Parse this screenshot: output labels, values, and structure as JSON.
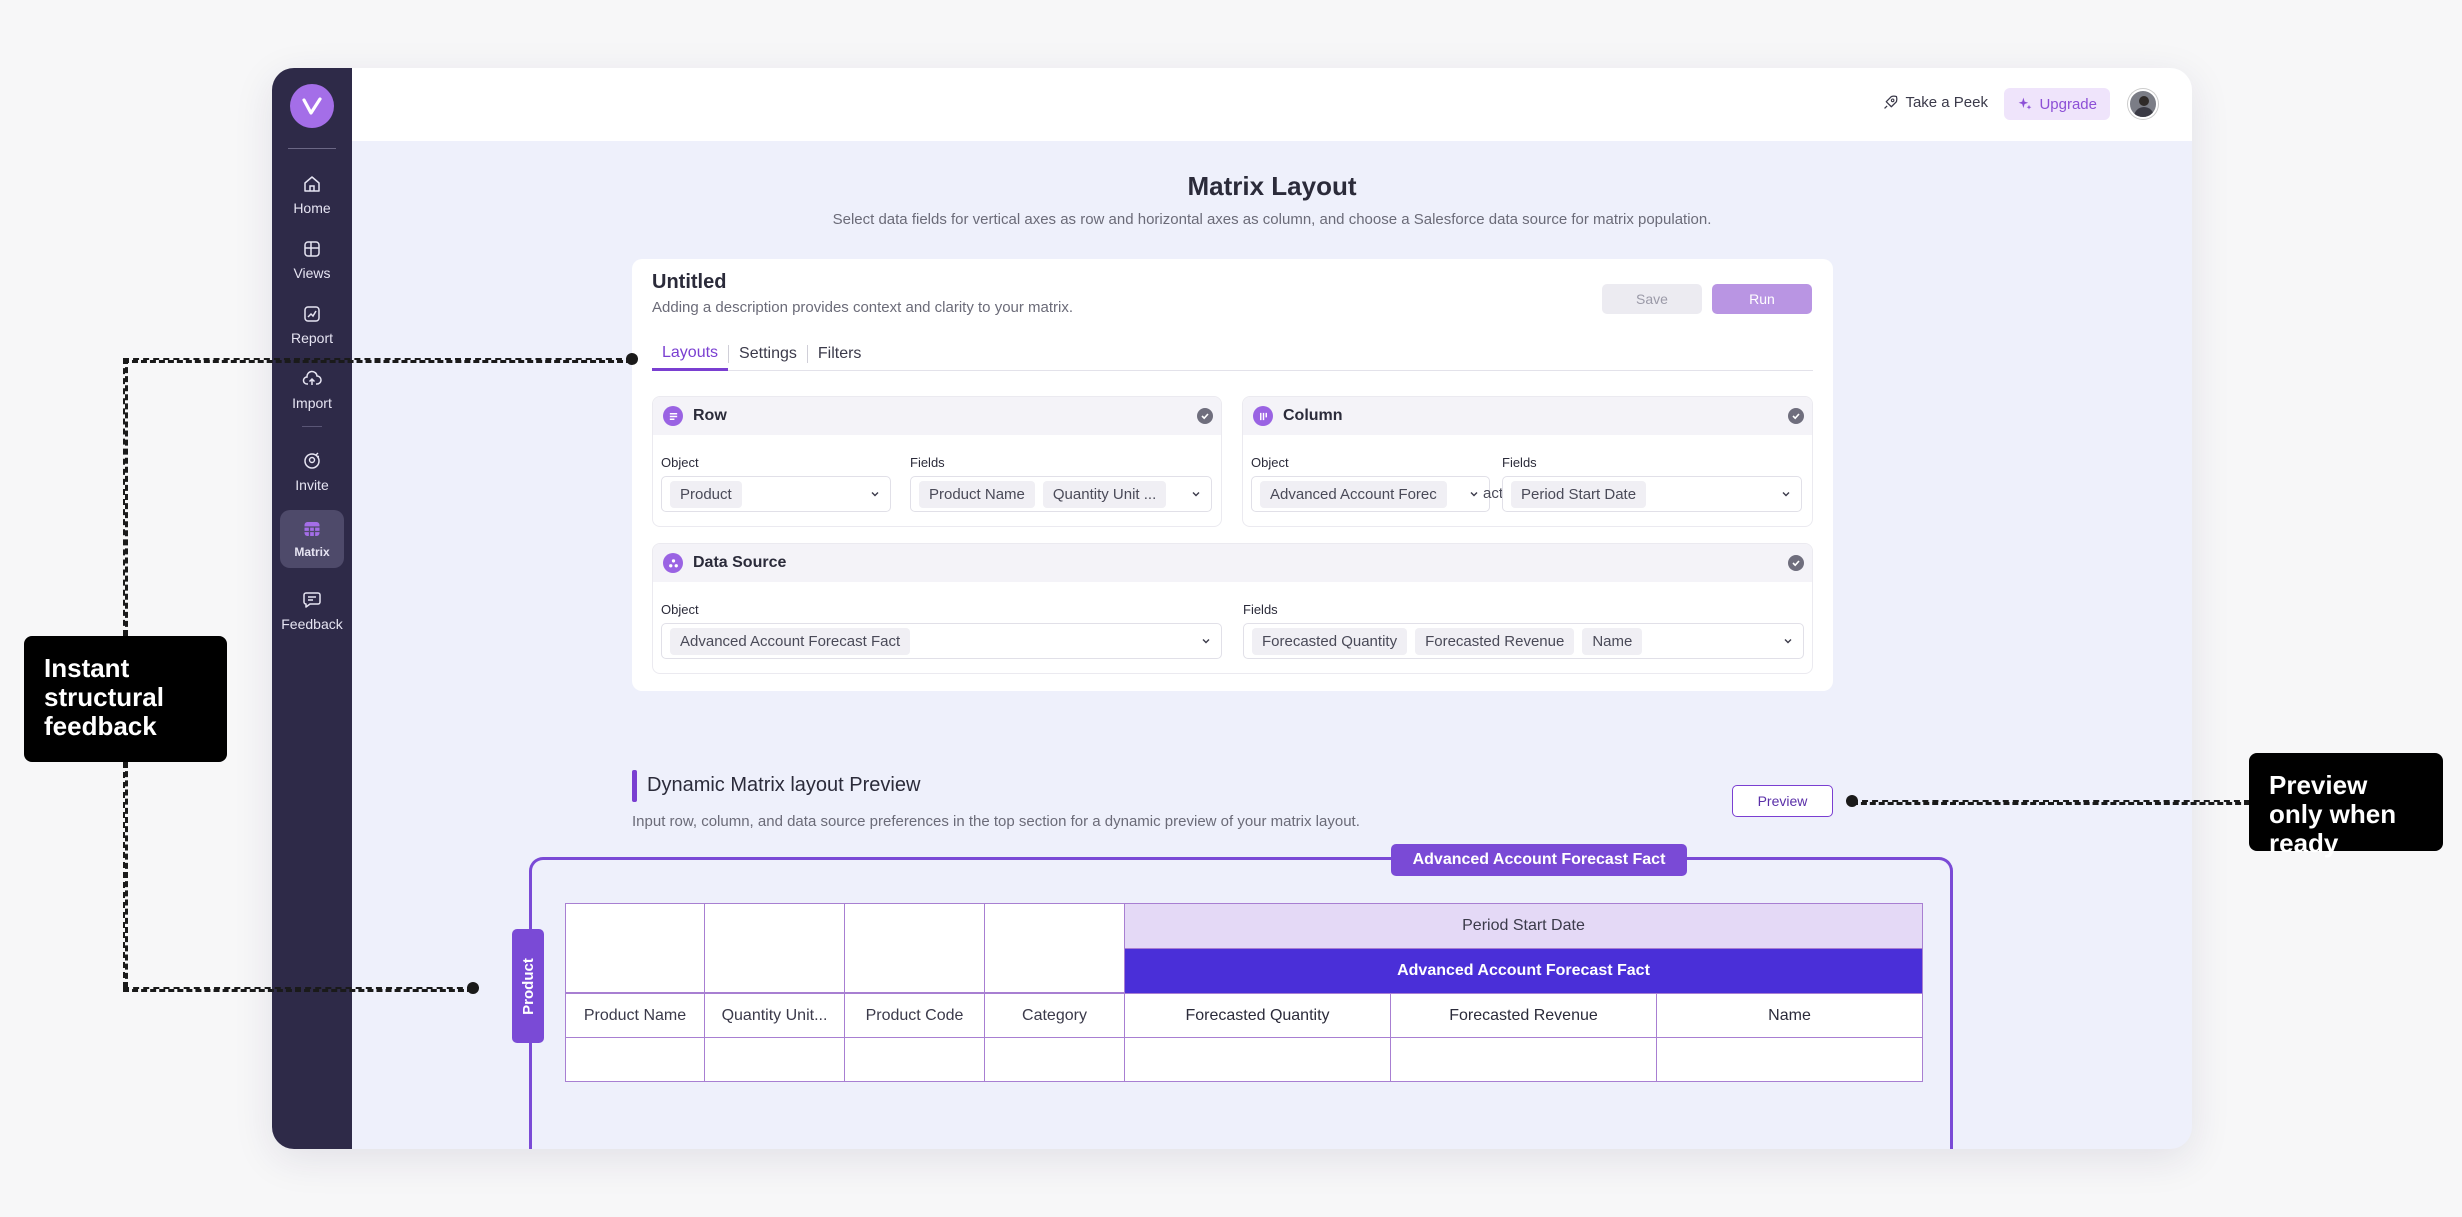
{
  "sidebar": {
    "items": [
      {
        "label": "Home",
        "icon": "home-icon"
      },
      {
        "label": "Views",
        "icon": "views-icon"
      },
      {
        "label": "Report",
        "icon": "report-icon"
      },
      {
        "label": "Import",
        "icon": "import-icon"
      },
      {
        "label": "Invite",
        "icon": "invite-icon"
      },
      {
        "label": "Matrix",
        "icon": "matrix-icon"
      },
      {
        "label": "Feedback",
        "icon": "feedback-icon"
      }
    ],
    "active": "Matrix"
  },
  "topbar": {
    "peek_label": "Take a Peek",
    "upgrade_label": "Upgrade"
  },
  "page": {
    "title": "Matrix Layout",
    "subtitle": "Select data fields for vertical axes as row and horizontal axes as column, and choose a Salesforce data source for matrix population."
  },
  "card": {
    "title": "Untitled",
    "description": "Adding a description provides context and clarity to your matrix.",
    "save_label": "Save",
    "run_label": "Run",
    "tabs": [
      "Layouts",
      "Settings",
      "Filters"
    ],
    "active_tab": "Layouts"
  },
  "row_panel": {
    "title": "Row",
    "object_label": "Object",
    "object_value": "Product",
    "fields_label": "Fields",
    "fields": [
      "Product Name",
      "Quantity Unit ..."
    ]
  },
  "column_panel": {
    "title": "Column",
    "object_label": "Object",
    "object_value": "Advanced Account Forec",
    "overflow_text": "act",
    "fields_label": "Fields",
    "fields": [
      "Period Start Date"
    ]
  },
  "data_source_panel": {
    "title": "Data Source",
    "object_label": "Object",
    "object_value": "Advanced Account Forecast Fact",
    "fields_label": "Fields",
    "fields": [
      "Forecasted Quantity",
      "Forecasted Revenue",
      "Name"
    ]
  },
  "preview": {
    "title": "Dynamic Matrix layout Preview",
    "subtitle": "Input row, column, and data source preferences in the top section for a dynamic preview of your matrix layout.",
    "button_label": "Preview",
    "frame_label": "Advanced Account Forecast Fact",
    "row_tab_label": "Product",
    "period_header": "Period Start Date",
    "data_source_header": "Advanced Account Forecast Fact",
    "row_headers": [
      "Product Name",
      "Quantity Unit...",
      "Product Code",
      "Category"
    ],
    "measure_headers": [
      "Forecasted Quantity",
      "Forecasted Revenue",
      "Name"
    ]
  },
  "callouts": {
    "left": "Instant structural feedback",
    "right": "Preview only when ready"
  },
  "colors": {
    "sidebar": "#2e2a48",
    "accent": "#7a3fd1",
    "data_source_header": "#4a2fd8",
    "period_header": "#e4d9f6"
  }
}
